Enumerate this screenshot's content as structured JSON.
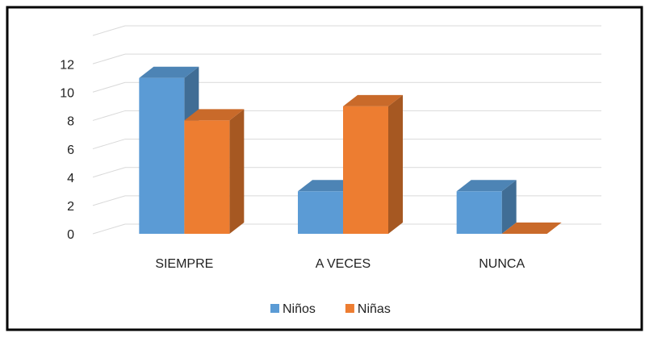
{
  "chart_data": {
    "type": "bar3d",
    "categories": [
      "SIEMPRE",
      "A VECES",
      "NUNCA"
    ],
    "series": [
      {
        "name": "Niños",
        "color": "#5b9bd5",
        "values": [
          11,
          3,
          3
        ]
      },
      {
        "name": "Niñas",
        "color": "#ed7d31",
        "values": [
          8,
          9,
          0
        ]
      }
    ],
    "ylim": [
      0,
      14
    ],
    "yticks": [
      0,
      2,
      4,
      6,
      8,
      10,
      12
    ],
    "grid": true,
    "legend": "bottom"
  }
}
